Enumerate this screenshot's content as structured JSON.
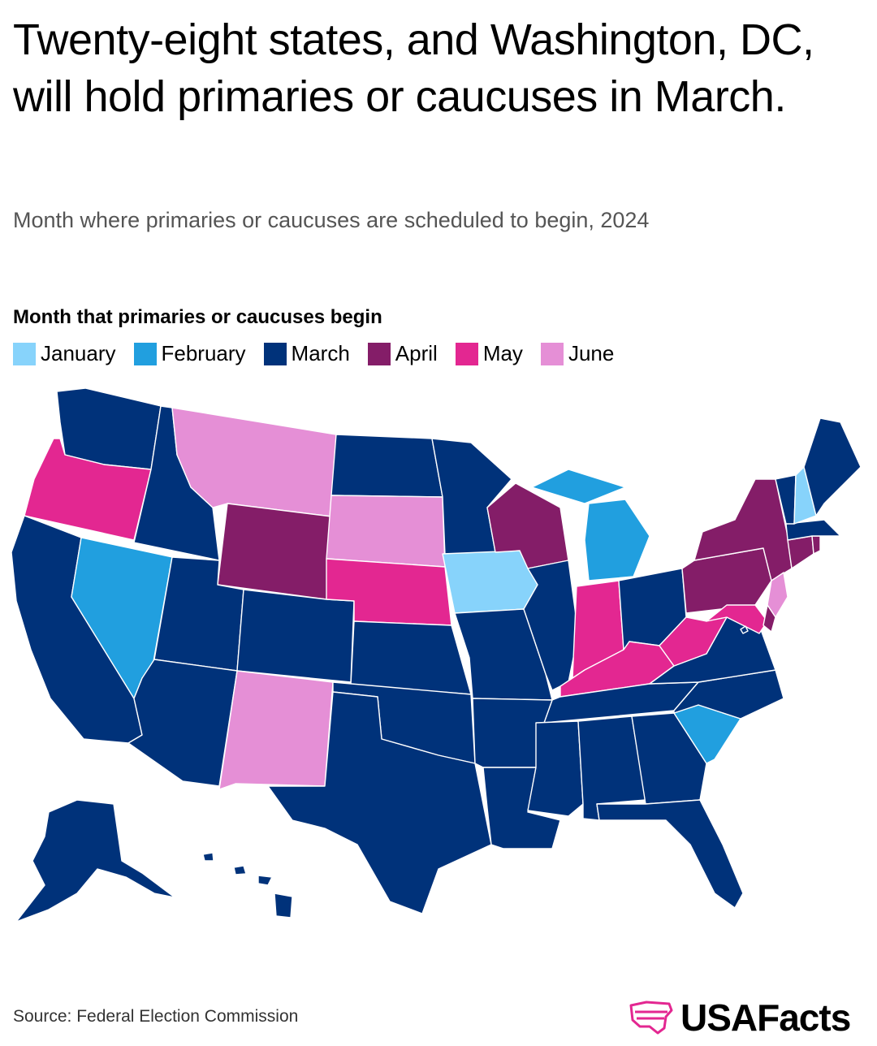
{
  "title": "Twenty-eight states, and Washington, DC, will hold primaries or caucuses in March.",
  "subtitle": "Month where primaries or caucuses are scheduled to begin, 2024",
  "legend": {
    "title": "Month that primaries or caucuses begin",
    "items": [
      {
        "label": "January",
        "color": "#87d3fb"
      },
      {
        "label": "February",
        "color": "#219fdf"
      },
      {
        "label": "March",
        "color": "#00327a"
      },
      {
        "label": "April",
        "color": "#841d68"
      },
      {
        "label": "May",
        "color": "#e32791"
      },
      {
        "label": "June",
        "color": "#e58fd6"
      }
    ]
  },
  "states": {
    "January": [
      "Iowa",
      "New Hampshire"
    ],
    "February": [
      "Nevada",
      "Michigan",
      "South Carolina"
    ],
    "March": [
      "Washington",
      "Idaho",
      "California",
      "Utah",
      "Arizona",
      "Colorado",
      "North Dakota",
      "Minnesota",
      "Kansas",
      "Oklahoma",
      "Texas",
      "Missouri",
      "Arkansas",
      "Louisiana",
      "Illinois",
      "Mississippi",
      "Alabama",
      "Tennessee",
      "Georgia",
      "Florida",
      "Ohio",
      "Virginia",
      "North Carolina",
      "Vermont",
      "Maine",
      "Massachusetts",
      "Alaska",
      "Hawaii",
      "Washington, DC"
    ],
    "April": [
      "Wyoming",
      "Wisconsin",
      "New York",
      "Pennsylvania",
      "Connecticut",
      "Rhode Island",
      "Delaware"
    ],
    "May": [
      "Oregon",
      "Nebraska",
      "Indiana",
      "Kentucky",
      "West Virginia",
      "Maryland"
    ],
    "June": [
      "Montana",
      "South Dakota",
      "New Mexico",
      "New Jersey"
    ]
  },
  "source": "Source: Federal Election Commission",
  "brand": "USAFacts",
  "brand_color": "#e32791"
}
